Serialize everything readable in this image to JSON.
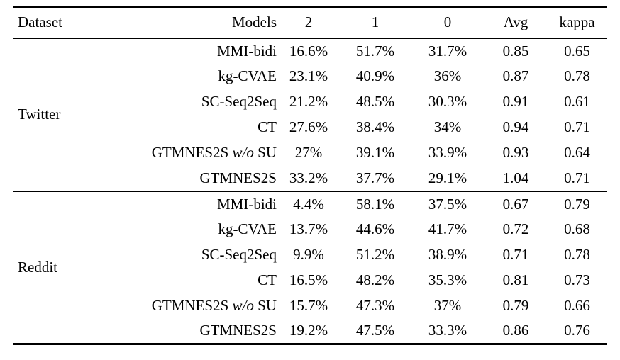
{
  "table": {
    "headers": {
      "dataset": "Dataset",
      "models": "Models",
      "score2": "2",
      "score1": "1",
      "score0": "0",
      "avg": "Avg",
      "kappa": "kappa"
    },
    "groups": [
      {
        "dataset": "Twitter",
        "rows": [
          {
            "model": "MMI-bidi",
            "model_italic": "",
            "model_end": "",
            "score2": "16.6%",
            "score1": "51.7%",
            "score0": "31.7%",
            "avg": "0.85",
            "kappa": "0.65"
          },
          {
            "model": "kg-CVAE",
            "model_italic": "",
            "model_end": "",
            "score2": "23.1%",
            "score1": "40.9%",
            "score0": "36%",
            "avg": "0.87",
            "kappa": "0.78"
          },
          {
            "model": "SC-Seq2Seq",
            "model_italic": "",
            "model_end": "",
            "score2": "21.2%",
            "score1": "48.5%",
            "score0": "30.3%",
            "avg": "0.91",
            "kappa": "0.61"
          },
          {
            "model": "CT",
            "model_italic": "",
            "model_end": "",
            "score2": "27.6%",
            "score1": "38.4%",
            "score0": "34%",
            "avg": "0.94",
            "kappa": "0.71"
          },
          {
            "model": "GTMNES2S ",
            "model_italic": "w/o",
            "model_end": " SU",
            "score2": "27%",
            "score1": "39.1%",
            "score0": "33.9%",
            "avg": "0.93",
            "kappa": "0.64"
          },
          {
            "model": "GTMNES2S",
            "model_italic": "",
            "model_end": "",
            "score2": "33.2%",
            "score1": "37.7%",
            "score0": "29.1%",
            "avg": "1.04",
            "kappa": "0.71"
          }
        ]
      },
      {
        "dataset": "Reddit",
        "rows": [
          {
            "model": "MMI-bidi",
            "model_italic": "",
            "model_end": "",
            "score2": "4.4%",
            "score1": "58.1%",
            "score0": "37.5%",
            "avg": "0.67",
            "kappa": "0.79"
          },
          {
            "model": "kg-CVAE",
            "model_italic": "",
            "model_end": "",
            "score2": "13.7%",
            "score1": "44.6%",
            "score0": "41.7%",
            "avg": "0.72",
            "kappa": "0.68"
          },
          {
            "model": "SC-Seq2Seq",
            "model_italic": "",
            "model_end": "",
            "score2": "9.9%",
            "score1": "51.2%",
            "score0": "38.9%",
            "avg": "0.71",
            "kappa": "0.78"
          },
          {
            "model": "CT",
            "model_italic": "",
            "model_end": "",
            "score2": "16.5%",
            "score1": "48.2%",
            "score0": "35.3%",
            "avg": "0.81",
            "kappa": "0.73"
          },
          {
            "model": "GTMNES2S ",
            "model_italic": "w/o",
            "model_end": " SU",
            "score2": "15.7%",
            "score1": "47.3%",
            "score0": "37%",
            "avg": "0.79",
            "kappa": "0.66"
          },
          {
            "model": "GTMNES2S",
            "model_italic": "",
            "model_end": "",
            "score2": "19.2%",
            "score1": "47.5%",
            "score0": "33.3%",
            "avg": "0.86",
            "kappa": "0.76"
          }
        ]
      }
    ]
  }
}
